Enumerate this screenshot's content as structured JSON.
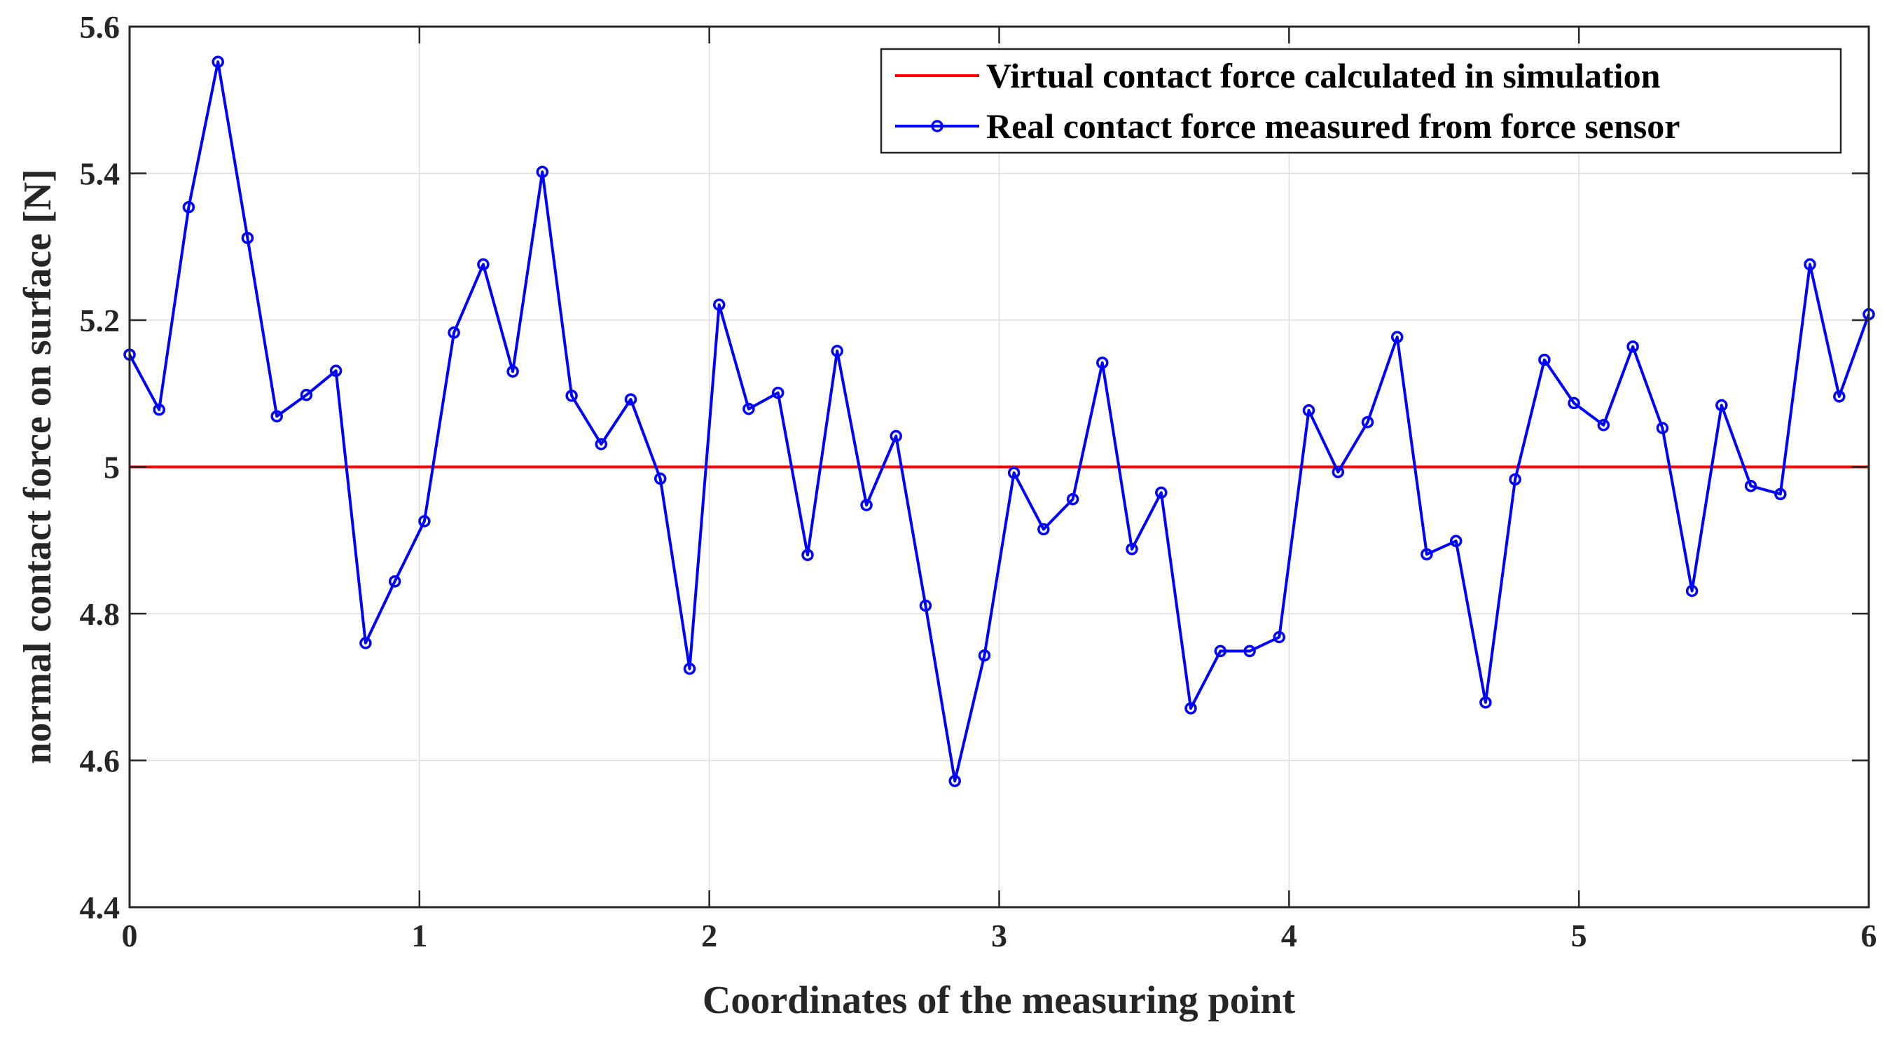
{
  "chart_data": {
    "type": "line",
    "xlabel": "Coordinates of the measuring point",
    "ylabel": "normal contact force on surface [N]",
    "xlim": [
      0,
      6
    ],
    "ylim": [
      4.4,
      5.6
    ],
    "xticks": [
      "0",
      "1",
      "2",
      "3",
      "4",
      "5",
      "6"
    ],
    "yticks": [
      "4.4",
      "4.6",
      "4.8",
      "5",
      "5.2",
      "5.4",
      "5.6"
    ],
    "grid": true,
    "legend_position": "top-right",
    "series": [
      {
        "name": "Virtual contact force calculated in simulation",
        "color": "#ff0000",
        "marker": "none",
        "x": [
          0,
          6
        ],
        "y": [
          5.0,
          5.0
        ]
      },
      {
        "name": "Real contact force measured from force sensor",
        "color": "#0000ff",
        "marker": "circle",
        "x": [
          0,
          0.102,
          0.204,
          0.305,
          0.407,
          0.508,
          0.61,
          0.712,
          0.814,
          0.915,
          1.017,
          1.119,
          1.22,
          1.322,
          1.424,
          1.525,
          1.627,
          1.729,
          1.831,
          1.932,
          2.034,
          2.136,
          2.237,
          2.339,
          2.441,
          2.542,
          2.644,
          2.746,
          2.847,
          2.949,
          3.051,
          3.153,
          3.254,
          3.356,
          3.458,
          3.559,
          3.661,
          3.763,
          3.864,
          3.966,
          4.068,
          4.169,
          4.271,
          4.373,
          4.475,
          4.576,
          4.678,
          4.78,
          4.881,
          4.983,
          5.085,
          5.186,
          5.288,
          5.39,
          5.492,
          5.593,
          5.695,
          5.797,
          5.898,
          6.0
        ],
        "y": [
          5.153,
          5.078,
          5.354,
          5.552,
          5.312,
          5.069,
          5.098,
          5.131,
          4.76,
          4.844,
          4.926,
          5.183,
          5.276,
          5.13,
          5.402,
          5.097,
          5.031,
          5.092,
          4.984,
          4.725,
          5.221,
          5.079,
          5.101,
          4.88,
          5.158,
          4.948,
          5.042,
          4.811,
          4.572,
          4.743,
          4.992,
          4.915,
          4.956,
          5.142,
          4.888,
          4.965,
          4.671,
          4.749,
          4.749,
          4.768,
          5.077,
          4.993,
          5.061,
          5.177,
          4.881,
          4.899,
          4.679,
          4.983,
          5.146,
          5.087,
          5.057,
          5.164,
          5.053,
          4.831,
          5.084,
          4.974,
          4.963,
          5.276,
          5.096,
          5.208
        ]
      }
    ]
  }
}
